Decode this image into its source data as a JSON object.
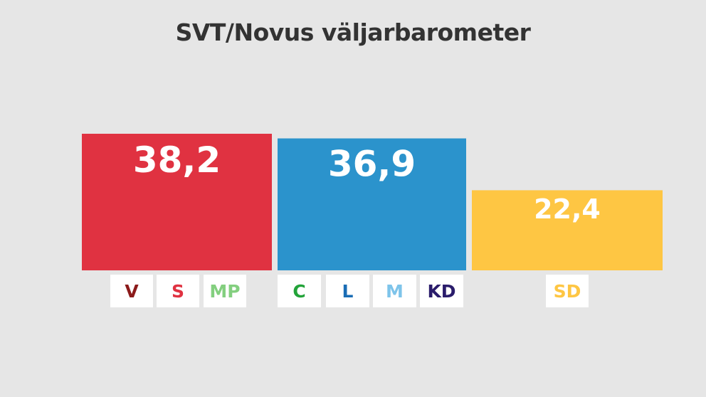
{
  "chart_data": {
    "type": "bar",
    "title": "SVT/Novus väljarbarometer",
    "categories": [
      "V S MP",
      "C L M KD",
      "SD"
    ],
    "values": [
      38.2,
      36.9,
      22.4
    ],
    "value_labels": [
      "38,2",
      "36,9",
      "22,4"
    ],
    "bar_colors": [
      "#e03241",
      "#2b93cc",
      "#fec643"
    ],
    "groups": [
      {
        "value_label": "38,2",
        "parties": [
          {
            "name": "V",
            "color": "#8b1a1a"
          },
          {
            "name": "S",
            "color": "#e03241"
          },
          {
            "name": "MP",
            "color": "#83cf7f"
          }
        ]
      },
      {
        "value_label": "36,9",
        "parties": [
          {
            "name": "C",
            "color": "#22a339"
          },
          {
            "name": "L",
            "color": "#1a6db5"
          },
          {
            "name": "M",
            "color": "#7ec4ea"
          },
          {
            "name": "KD",
            "color": "#2a1c6b"
          }
        ]
      },
      {
        "value_label": "22,4",
        "parties": [
          {
            "name": "SD",
            "color": "#fec643"
          }
        ]
      }
    ],
    "ylim": [
      0,
      40
    ],
    "xlabel": "",
    "ylabel": "",
    "grid": false,
    "legend": "none"
  },
  "colors": {
    "background": "#e6e6e6",
    "title": "#333333",
    "label_box": "#ffffff"
  }
}
